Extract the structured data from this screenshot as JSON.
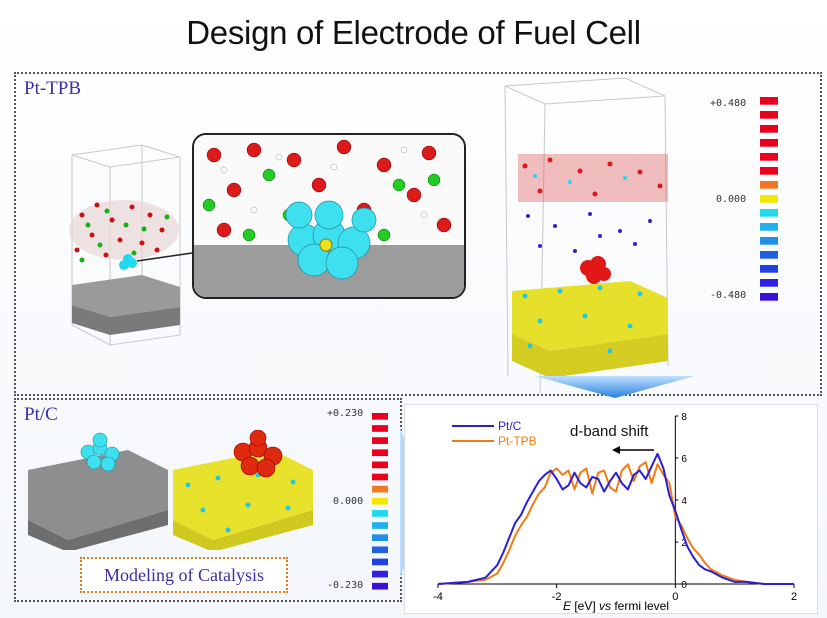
{
  "title": "Design of Electrode of Fuel Cell",
  "panels": {
    "top_label": "Pt-TPB",
    "left_label": "Pt/C",
    "modeling_label": "Modeling of Catalysis"
  },
  "colorbar_top": {
    "max": "+0.480",
    "mid": "0.000",
    "min": "-0.480"
  },
  "colorbar_left": {
    "max": "+0.230",
    "mid": "0.000",
    "min": "-0.230"
  },
  "colors": {
    "pt_c": "#2a1fd6",
    "pt_tpb": "#f07c12",
    "accent_arrow": "#3d8fe8",
    "colorbar": [
      "#e8001c",
      "#e8001c",
      "#e8001c",
      "#e8001c",
      "#e8001c",
      "#e8001c",
      "#f07820",
      "#f5e800",
      "#20d8f0",
      "#20b0f0",
      "#2090e8",
      "#2060e0",
      "#2040e0",
      "#3020e0",
      "#3a10d8"
    ]
  },
  "chart_data": {
    "type": "line",
    "title": "",
    "xlabel": "E [eV] vs fermi level",
    "xlabel_parts": {
      "italic_E": "E",
      "unit": " [eV] ",
      "italic_vs": "vs",
      "rest": " fermi level"
    },
    "ylabel": "",
    "xlim": [
      -4,
      2
    ],
    "ylim": [
      0,
      8
    ],
    "x_ticks": [
      "-4",
      "-2",
      "0",
      "2"
    ],
    "y_ticks": [
      "0",
      "2",
      "4",
      "6",
      "8"
    ],
    "annotation": "d-band shift",
    "legend": "top-left",
    "series": [
      {
        "name": "Pt/C",
        "x": [
          -4.0,
          -3.5,
          -3.2,
          -3.0,
          -2.9,
          -2.8,
          -2.7,
          -2.6,
          -2.5,
          -2.4,
          -2.3,
          -2.2,
          -2.1,
          -2.0,
          -1.9,
          -1.8,
          -1.7,
          -1.6,
          -1.5,
          -1.4,
          -1.3,
          -1.2,
          -1.1,
          -1.0,
          -0.9,
          -0.8,
          -0.7,
          -0.6,
          -0.5,
          -0.4,
          -0.3,
          -0.2,
          -0.1,
          0.0,
          0.1,
          0.2,
          0.3,
          0.4,
          0.5,
          0.6,
          0.8,
          1.0,
          1.2,
          1.5,
          2.0
        ],
        "y": [
          0.0,
          0.1,
          0.3,
          0.9,
          1.5,
          2.2,
          2.9,
          3.3,
          3.9,
          4.4,
          4.9,
          5.2,
          5.4,
          5.0,
          4.5,
          4.7,
          5.3,
          4.8,
          4.6,
          5.1,
          5.0,
          4.4,
          4.9,
          5.3,
          4.8,
          4.5,
          5.2,
          5.4,
          5.0,
          5.6,
          6.2,
          5.5,
          4.2,
          3.5,
          2.6,
          1.8,
          1.3,
          0.9,
          0.7,
          0.6,
          0.3,
          0.1,
          0.1,
          0.0,
          0.0
        ]
      },
      {
        "name": "Pt-TPB",
        "x": [
          -4.0,
          -3.5,
          -3.2,
          -3.0,
          -2.9,
          -2.8,
          -2.7,
          -2.6,
          -2.5,
          -2.4,
          -2.3,
          -2.2,
          -2.1,
          -2.0,
          -1.9,
          -1.8,
          -1.7,
          -1.6,
          -1.5,
          -1.4,
          -1.3,
          -1.2,
          -1.1,
          -1.0,
          -0.9,
          -0.8,
          -0.7,
          -0.6,
          -0.5,
          -0.4,
          -0.3,
          -0.2,
          -0.1,
          0.0,
          0.1,
          0.2,
          0.3,
          0.4,
          0.5,
          0.6,
          0.8,
          1.0,
          1.2,
          1.5,
          2.0
        ],
        "y": [
          0.0,
          0.1,
          0.2,
          0.5,
          1.0,
          1.6,
          2.3,
          2.8,
          3.2,
          3.8,
          4.3,
          4.6,
          5.3,
          5.5,
          5.2,
          5.4,
          4.5,
          5.3,
          5.5,
          4.3,
          5.3,
          5.4,
          4.6,
          4.4,
          5.4,
          5.7,
          4.9,
          5.6,
          5.8,
          4.8,
          5.7,
          5.2,
          4.8,
          3.2,
          2.8,
          2.2,
          1.7,
          1.4,
          1.0,
          0.7,
          0.4,
          0.2,
          0.1,
          0.0,
          0.0
        ]
      }
    ]
  }
}
